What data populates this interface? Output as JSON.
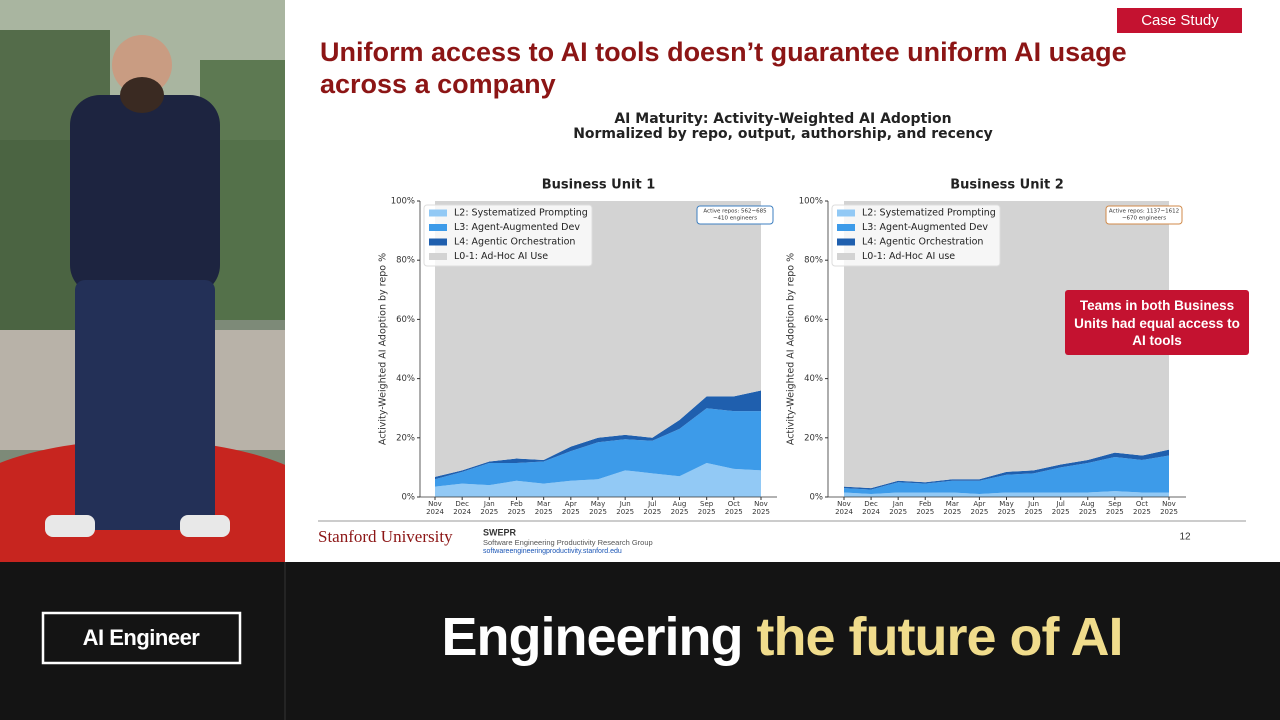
{
  "slide": {
    "badge": "Case Study",
    "title": "Uniform access to AI tools doesn’t guarantee uniform AI usage across a company",
    "chart_heading": [
      "AI Maturity: Activity-Weighted AI Adoption",
      "Normalized by repo, output, authorship, and recency"
    ],
    "university": "Stanford University",
    "group_short": "SWEPR",
    "group_name": "Software Engineering Productivity Research Group",
    "url": "softwareengineeringproductivity.stanford.edu",
    "page_number": "12"
  },
  "banner": {
    "logo": "AI Engineer",
    "tagline_1": "Engineering",
    "tagline_2": "the future of AI"
  },
  "chart_data": [
    {
      "type": "area",
      "title": "Business Unit 1",
      "ylabel": "Activity-Weighted AI Adoption by repo %",
      "categories": [
        "Nov 2024",
        "Dec 2024",
        "Jan 2025",
        "Feb 2025",
        "Mar 2025",
        "Apr 2025",
        "May 2025",
        "Jun 2025",
        "Jul 2025",
        "Aug 2025",
        "Sep 2025",
        "Oct 2025",
        "Nov 2025"
      ],
      "series": [
        {
          "name": "L2: Systematized Prompting",
          "color": "#92c9f5",
          "values": [
            3.5,
            4.5,
            4,
            5.5,
            4.5,
            5.5,
            6,
            9,
            8,
            7,
            11.5,
            9.5,
            9
          ]
        },
        {
          "name": "L3: Agent-Augmented Dev",
          "color": "#3d9be9",
          "values": [
            2.5,
            4,
            7.5,
            6,
            7.5,
            10,
            12.5,
            10.5,
            11,
            16,
            18.5,
            19.5,
            20
          ]
        },
        {
          "name": "L4: Agentic Orchestration",
          "color": "#1f5fae",
          "values": [
            0.8,
            0.5,
            0.5,
            1.5,
            0.5,
            1.5,
            1.5,
            1.5,
            1,
            3,
            4,
            5,
            7
          ]
        },
        {
          "name": "L0-1: Ad-Hoc AI Use",
          "color": "#d3d3d3",
          "values": [
            93.2,
            91,
            88,
            87,
            87.5,
            83,
            80,
            79,
            80,
            74,
            66,
            66,
            64
          ]
        }
      ],
      "stacked": true,
      "ylim": [
        0,
        100
      ],
      "yticks": [
        {
          "value": 0,
          "label": "0%"
        },
        {
          "value": 20,
          "label": "20%"
        },
        {
          "value": 40,
          "label": "40%"
        },
        {
          "value": 60,
          "label": "60%"
        },
        {
          "value": 80,
          "label": "80%"
        },
        {
          "value": 100,
          "label": "100%"
        }
      ],
      "legend": "upper left",
      "annotation": [
        "Active repos: 562~685",
        "~410 engineers"
      ],
      "annotation_border": "#3d7fc0"
    },
    {
      "type": "area",
      "title": "Business Unit 2",
      "ylabel": "Activity-Weighted AI Adoption by repo %",
      "categories": [
        "Nov 2024",
        "Dec 2024",
        "Jan 2025",
        "Feb 2025",
        "Mar 2025",
        "Apr 2025",
        "May 2025",
        "Jun 2025",
        "Jul 2025",
        "Aug 2025",
        "Sep 2025",
        "Oct 2025",
        "Nov 2025"
      ],
      "series": [
        {
          "name": "L2: Systematized Prompting",
          "color": "#92c9f5",
          "values": [
            1.5,
            1,
            1.5,
            1.5,
            1.5,
            1,
            1.5,
            1.5,
            1.5,
            1.5,
            2,
            1.5,
            1.5
          ]
        },
        {
          "name": "L3: Agent-Augmented Dev",
          "color": "#3d9be9",
          "values": [
            1.5,
            1.5,
            3.5,
            3,
            4,
            4.5,
            6,
            6.5,
            8.5,
            10,
            11.5,
            11,
            12.5
          ]
        },
        {
          "name": "L4: Agentic Orchestration",
          "color": "#1f5fae",
          "values": [
            0.5,
            0.5,
            0.5,
            0.5,
            0.5,
            0.5,
            1,
            1,
            1,
            1,
            1.5,
            1.5,
            2
          ]
        },
        {
          "name": "L0-1: Ad-Hoc AI use",
          "color": "#d3d3d3",
          "values": [
            96.5,
            97,
            94.5,
            95,
            94,
            94,
            91.5,
            91,
            89,
            87.5,
            85,
            86,
            84
          ]
        }
      ],
      "stacked": true,
      "ylim": [
        0,
        100
      ],
      "yticks": [
        {
          "value": 0,
          "label": "0%"
        },
        {
          "value": 20,
          "label": "20%"
        },
        {
          "value": 40,
          "label": "40%"
        },
        {
          "value": 60,
          "label": "60%"
        },
        {
          "value": 80,
          "label": "80%"
        },
        {
          "value": 100,
          "label": "100%"
        }
      ],
      "legend": "upper left",
      "annotation": [
        "Active repos: 1137~1612",
        "~670 engineers"
      ],
      "annotation_border": "#d08a4a",
      "callout": "Teams in both Business Units had equal access to AI tools"
    }
  ]
}
